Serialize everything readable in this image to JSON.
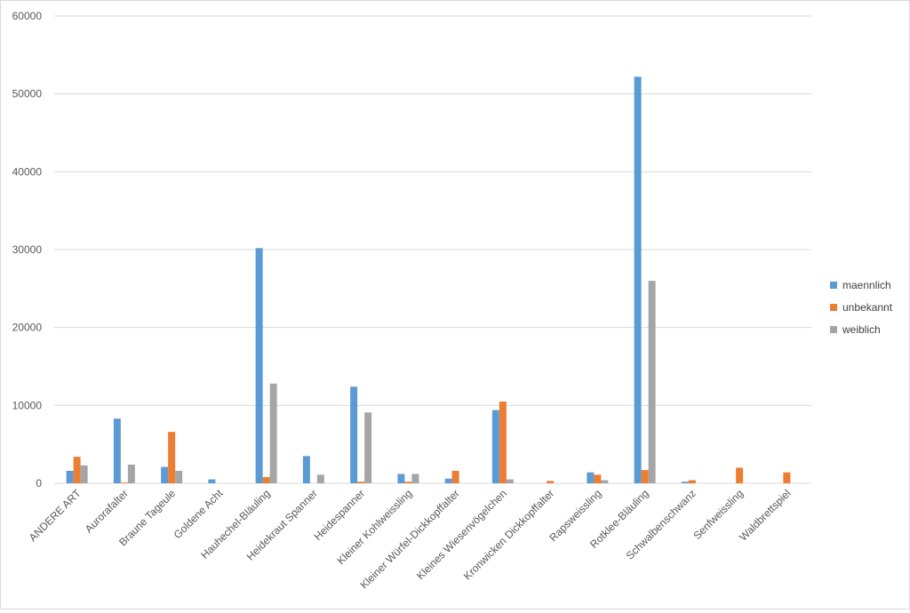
{
  "chart_data": {
    "type": "bar",
    "title": "",
    "xlabel": "",
    "ylabel": "",
    "ylim": [
      0,
      60000
    ],
    "yticks": [
      0,
      10000,
      20000,
      30000,
      40000,
      50000,
      60000
    ],
    "grid": true,
    "legend_position": "right",
    "categories": [
      "ANDERE ART",
      "Aurorafalter",
      "Braune Tageule",
      "Goldene Acht",
      "Hauhechel-Bläuling",
      "Heidekraut Spanner",
      "Heidespanner",
      "Kleiner Kohlweissling",
      "Kleiner Würfel-Dickkopffalter",
      "Kleines Wiesenvögelchen",
      "Kronwicken Dickkopffalter",
      "Rapsweissling",
      "Rotklee-Bläuling",
      "Schwalbenschwanz",
      "Senfweissling",
      "Waldbrettspiel"
    ],
    "series": [
      {
        "name": "maennlich",
        "color": "#5b9bd5",
        "values": [
          1600,
          8300,
          2100,
          500,
          30200,
          3500,
          12400,
          1200,
          600,
          9400,
          0,
          1400,
          52200,
          200,
          0,
          0
        ]
      },
      {
        "name": "unbekannt",
        "color": "#ed7d31",
        "values": [
          3400,
          100,
          6600,
          0,
          800,
          0,
          200,
          200,
          1600,
          10500,
          300,
          1100,
          1700,
          400,
          2000,
          1400
        ]
      },
      {
        "name": "weiblich",
        "color": "#a5a5a5",
        "values": [
          2300,
          2400,
          1600,
          0,
          12800,
          1100,
          9100,
          1200,
          0,
          500,
          0,
          400,
          26000,
          0,
          0,
          0
        ]
      }
    ]
  }
}
